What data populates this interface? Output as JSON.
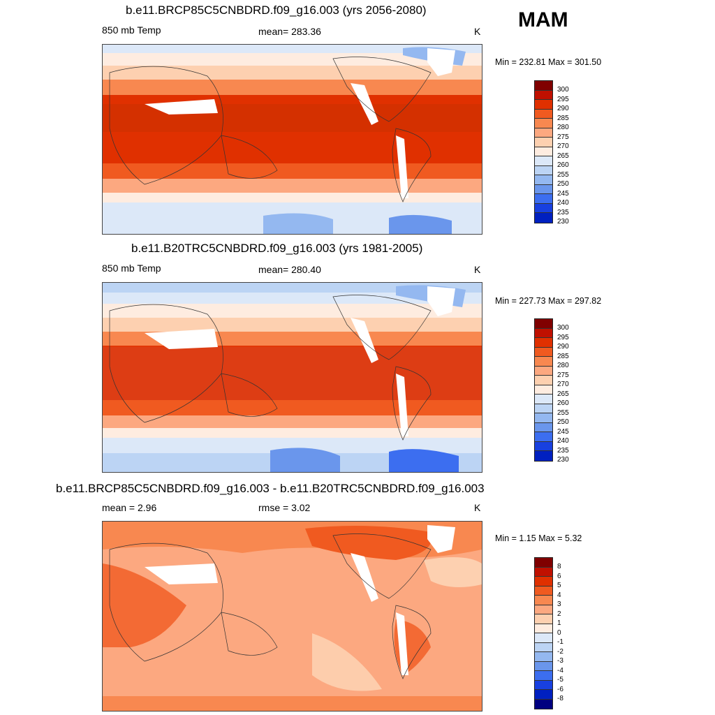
{
  "season": "MAM",
  "panels": [
    {
      "title": "b.e11.BRCP85C5CNBDRD.f09_g16.003 (yrs 2056-2080)",
      "left_label": "850 mb Temp",
      "center_label": "mean= 283.36",
      "units": "K",
      "minmax": "Min = 232.81 Max = 301.50",
      "colorbar_labels": [
        "300",
        "295",
        "290",
        "285",
        "280",
        "275",
        "270",
        "265",
        "260",
        "255",
        "250",
        "245",
        "240",
        "235",
        "230"
      ]
    },
    {
      "title": "b.e11.B20TRC5CNBDRD.f09_g16.003 (yrs 1981-2005)",
      "left_label": "850 mb Temp",
      "center_label": "mean= 280.40",
      "units": "K",
      "minmax": "Min = 227.73 Max = 297.82",
      "colorbar_labels": [
        "300",
        "295",
        "290",
        "285",
        "280",
        "275",
        "270",
        "265",
        "260",
        "255",
        "250",
        "245",
        "240",
        "235",
        "230"
      ]
    },
    {
      "title": "b.e11.BRCP85C5CNBDRD.f09_g16.003 - b.e11.B20TRC5CNBDRD.f09_g16.003",
      "left_label": "mean =   2.96",
      "center_label": "rmse =   3.02",
      "units": "K",
      "minmax": "Min =   1.15 Max =   5.32",
      "colorbar_labels": [
        "8",
        "6",
        "5",
        "4",
        "3",
        "2",
        "1",
        "0",
        "-1",
        "-2",
        "-3",
        "-4",
        "-5",
        "-6",
        "-8"
      ]
    }
  ],
  "colors": {
    "abs_scale": [
      "#800000",
      "#c01000",
      "#e03000",
      "#f05a20",
      "#f88850",
      "#fca880",
      "#fdd0b0",
      "#feece0",
      "#dce8f8",
      "#bcd4f4",
      "#94b8f0",
      "#6a96ec",
      "#3c6ef0",
      "#1840e0",
      "#0020c0",
      "#000080"
    ],
    "diff_scale": [
      "#800000",
      "#c01000",
      "#e03000",
      "#f05a20",
      "#f88850",
      "#fca880",
      "#fdd0b0",
      "#feece0",
      "#dce8f8",
      "#bcd4f4",
      "#94b8f0",
      "#6a96ec",
      "#3c6ef0",
      "#1840e0",
      "#0020c0",
      "#000080"
    ],
    "land_mask": "#ffffff",
    "coast": "#333333"
  }
}
